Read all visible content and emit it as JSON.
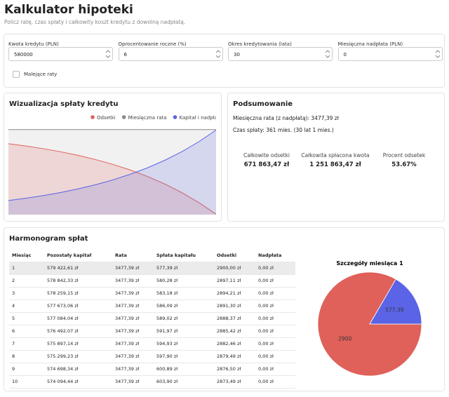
{
  "header": {
    "title": "Kalkulator hipoteki",
    "subtitle": "Policz ratę, czas spłaty i całkowity koszt kredytu z dowolną nadpłatą."
  },
  "form": {
    "fields": [
      {
        "label": "Kwota kredytu (PLN)",
        "value": "580000"
      },
      {
        "label": "Oprocentowanie roczne (%)",
        "value": "6"
      },
      {
        "label": "Okres kredytowania (lata)",
        "value": "30"
      },
      {
        "label": "Miesięczna nadpłata (PLN)",
        "value": "0"
      }
    ],
    "checkbox": {
      "label": "Malejące raty"
    }
  },
  "visualization": {
    "title": "Wizualizacja spłaty kredytu",
    "chart_data": {
      "type": "area",
      "x": [
        1,
        31,
        61,
        91,
        121,
        151,
        181,
        211,
        241,
        271,
        301,
        331,
        360
      ],
      "xlim": [
        1,
        360
      ],
      "ylim": [
        0,
        3500
      ],
      "series": [
        {
          "name": "Odsetki",
          "color": "#e0605a",
          "values": [
            2900.0,
            2806.81,
            2698.58,
            2572.88,
            2426.89,
            2257.34,
            2060.42,
            1831.72,
            1566.11,
            1257.62,
            899.36,
            483.21,
            17.28
          ]
        },
        {
          "name": "Miesięczna rata",
          "color": "#8a8a8a",
          "values": [
            3477.39,
            3477.39,
            3477.39,
            3477.39,
            3477.39,
            3477.39,
            3477.39,
            3477.39,
            3477.39,
            3477.39,
            3477.39,
            3477.39,
            3477.39
          ]
        },
        {
          "name": "Kapitał i nadpłata",
          "color": "#5b63e6",
          "values": [
            577.39,
            670.58,
            778.81,
            904.51,
            1050.5,
            1220.05,
            1416.97,
            1645.67,
            1911.28,
            2219.77,
            2578.03,
            2994.18,
            3460.11
          ]
        }
      ]
    }
  },
  "summary": {
    "title": "Podsumowanie",
    "lines": [
      {
        "label": "Miesięczna rata (z nadpłatą):",
        "value": "3477,39 zł"
      },
      {
        "label": "Czas spłaty:",
        "value": "361 mies. (30 lat 1 mies.)"
      }
    ],
    "stats": [
      {
        "label": "Całkowite odsetki",
        "value": "671 863,47 zł"
      },
      {
        "label": "Całkowita spłacona kwota",
        "value": "1 251 863,47 zł"
      },
      {
        "label": "Procent odsetek",
        "value": "53.67%"
      }
    ]
  },
  "schedule": {
    "title": "Harmonogram spłat",
    "table": {
      "columns": [
        "Miesiąc",
        "Pozostały kapitał",
        "Rata",
        "Spłata kapitału",
        "Odsetki",
        "Nadpłata"
      ],
      "rows": [
        [
          "1",
          "579 422,61 zł",
          "3477,39 zł",
          "577,39 zł",
          "2900,00 zł",
          "0,00 zł"
        ],
        [
          "2",
          "578 842,33 zł",
          "3477,39 zł",
          "580,28 zł",
          "2897,11 zł",
          "0,00 zł"
        ],
        [
          "3",
          "578 259,15 zł",
          "3477,39 zł",
          "583,18 zł",
          "2894,21 zł",
          "0,00 zł"
        ],
        [
          "4",
          "577 673,06 zł",
          "3477,39 zł",
          "586,09 zł",
          "2891,30 zł",
          "0,00 zł"
        ],
        [
          "5",
          "577 084,04 zł",
          "3477,39 zł",
          "589,02 zł",
          "2888,37 zł",
          "0,00 zł"
        ],
        [
          "6",
          "576 492,07 zł",
          "3477,39 zł",
          "591,97 zł",
          "2885,42 zł",
          "0,00 zł"
        ],
        [
          "7",
          "575 897,14 zł",
          "3477,39 zł",
          "594,93 zł",
          "2882,46 zł",
          "0,00 zł"
        ],
        [
          "8",
          "575 299,23 zł",
          "3477,39 zł",
          "597,90 zł",
          "2879,49 zł",
          "0,00 zł"
        ],
        [
          "9",
          "574 698,34 zł",
          "3477,39 zł",
          "600,89 zł",
          "2876,50 zł",
          "0,00 zł"
        ],
        [
          "10",
          "574 094,44 zł",
          "3477,39 zł",
          "603,90 zł",
          "2873,49 zł",
          "0,00 zł"
        ]
      ]
    }
  },
  "month_detail": {
    "chart_data": {
      "type": "pie",
      "title": "Szczegóły miesiąca 1",
      "values": [
        2900,
        577.39
      ],
      "colors": [
        "#e0605a",
        "#5b63e6"
      ]
    }
  }
}
